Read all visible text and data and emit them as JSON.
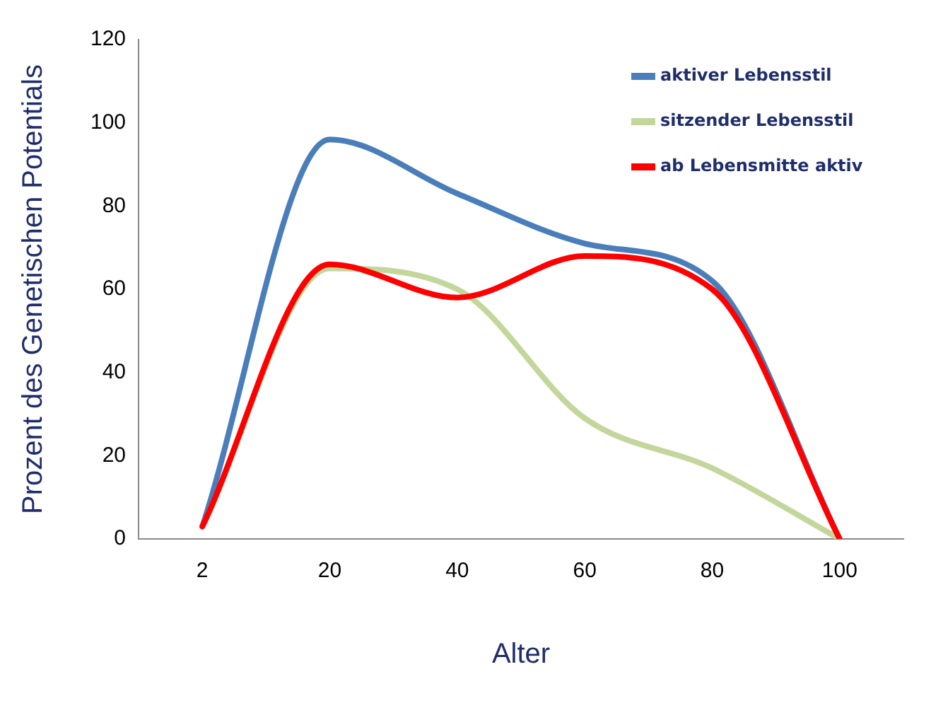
{
  "chart_data": {
    "type": "line",
    "xlabel": "Alter",
    "ylabel": "Prozent des Genetischen Potentials",
    "categories": [
      "2",
      "20",
      "40",
      "60",
      "80",
      "100"
    ],
    "series": [
      {
        "name": "aktiver Lebensstil",
        "color": "#4a7ebb",
        "values": [
          3,
          96,
          83,
          71,
          62,
          0
        ]
      },
      {
        "name": "sitzender Lebensstil",
        "color": "#c3d69b",
        "values": [
          3,
          65,
          60,
          29,
          17,
          0
        ]
      },
      {
        "name": "ab Lebensmitte aktiv",
        "color": "#ff0000",
        "values": [
          3,
          66,
          58,
          68,
          60,
          0
        ]
      }
    ],
    "ylim": [
      0,
      120
    ],
    "yticks": [
      0,
      20,
      40,
      60,
      80,
      100,
      120
    ],
    "grid": false,
    "legend": "top right",
    "marker": "none",
    "line_style": "solid"
  }
}
